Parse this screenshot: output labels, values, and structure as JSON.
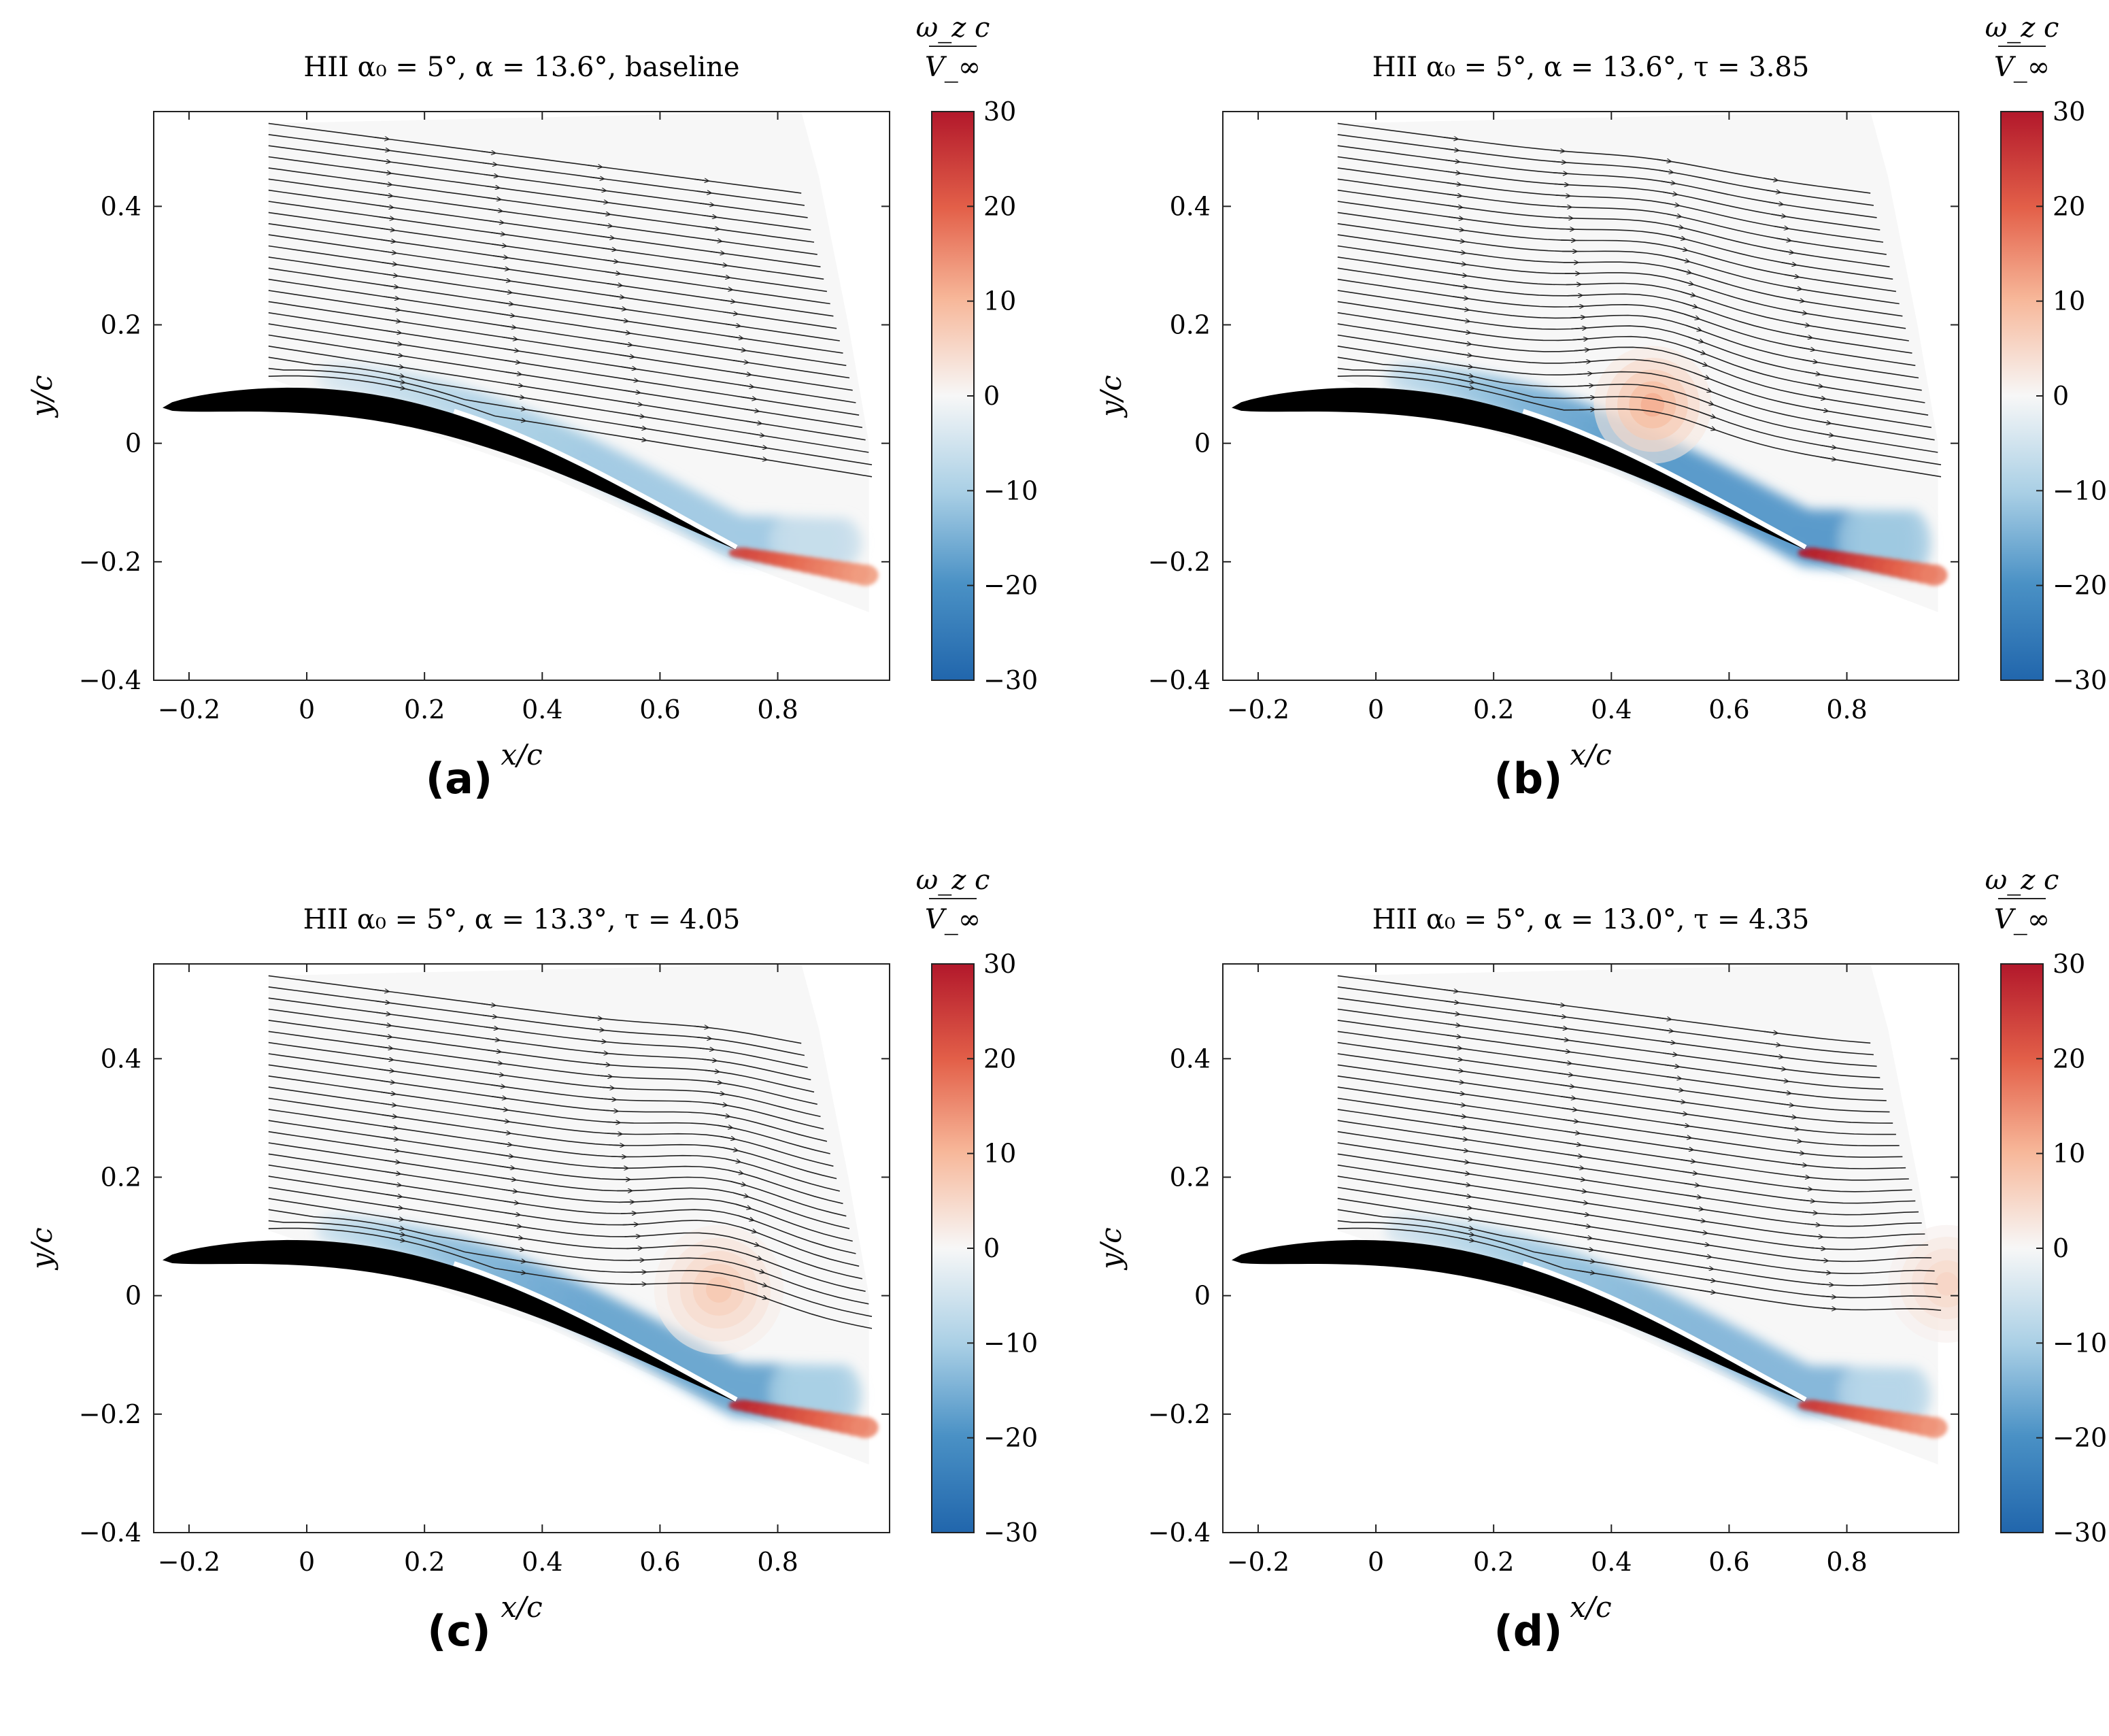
{
  "figure_title": "",
  "chart_data": [
    {
      "type": "heatmap",
      "panel": "(a)",
      "title": "HII α₀ = 5°, α = 13.6°, baseline",
      "xlabel": "x/c",
      "ylabel": "y/c",
      "xlim": [
        -0.26,
        0.99
      ],
      "ylim": [
        -0.4,
        0.56
      ],
      "xticks": [
        -0.2,
        0,
        0.2,
        0.4,
        0.6,
        0.8
      ],
      "yticks": [
        -0.4,
        -0.2,
        0,
        0.2,
        0.4
      ],
      "xtick_labels": [
        "−0.2",
        "0",
        "0.2",
        "0.4",
        "0.6",
        "0.8"
      ],
      "ytick_labels": [
        "−0.4",
        "−0.2",
        "0",
        "0.2",
        "0.4"
      ],
      "colorbar": {
        "label": "ω_z c / V_∞",
        "range": [
          -30,
          30
        ],
        "ticks": [
          30,
          20,
          10,
          0,
          -10,
          -20,
          -30
        ],
        "tick_labels": [
          "30",
          "20",
          "10",
          "0",
          "−10",
          "−20",
          "−30"
        ]
      },
      "vortex_blobs": [],
      "shear_intensity": 0.55,
      "wake_intensity": 0.8,
      "streamlines": "attached flow over suction side"
    },
    {
      "type": "heatmap",
      "panel": "(b)",
      "title": "HII α₀ = 5°, α = 13.6°, τ = 3.85",
      "xlabel": "x/c",
      "ylabel": "y/c",
      "xlim": [
        -0.26,
        0.99
      ],
      "ylim": [
        -0.4,
        0.56
      ],
      "xticks": [
        -0.2,
        0,
        0.2,
        0.4,
        0.6,
        0.8
      ],
      "yticks": [
        -0.4,
        -0.2,
        0,
        0.2,
        0.4
      ],
      "xtick_labels": [
        "−0.2",
        "0",
        "0.2",
        "0.4",
        "0.6",
        "0.8"
      ],
      "ytick_labels": [
        "−0.4",
        "−0.2",
        "0",
        "0.2",
        "0.4"
      ],
      "colorbar": {
        "label": "ω_z c / V_∞",
        "range": [
          -30,
          30
        ],
        "ticks": [
          30,
          20,
          10,
          0,
          -10,
          -20,
          -30
        ],
        "tick_labels": [
          "30",
          "20",
          "10",
          "0",
          "−10",
          "−20",
          "−30"
        ]
      },
      "vortex_blobs": [
        {
          "x": 0.47,
          "y": 0.065,
          "r": 0.1,
          "value": 12
        }
      ],
      "shear_intensity": 0.95,
      "wake_intensity": 1.0,
      "streamlines": "bulge above positive vortex near x/c = 0.47"
    },
    {
      "type": "heatmap",
      "panel": "(c)",
      "title": "HII α₀ = 5°, α = 13.3°, τ = 4.05",
      "xlabel": "x/c",
      "ylabel": "y/c",
      "xlim": [
        -0.26,
        0.99
      ],
      "ylim": [
        -0.4,
        0.56
      ],
      "xticks": [
        -0.2,
        0,
        0.2,
        0.4,
        0.6,
        0.8
      ],
      "yticks": [
        -0.4,
        -0.2,
        0,
        0.2,
        0.4
      ],
      "xtick_labels": [
        "−0.2",
        "0",
        "0.2",
        "0.4",
        "0.6",
        "0.8"
      ],
      "ytick_labels": [
        "−0.4",
        "−0.2",
        "0",
        "0.2",
        "0.4"
      ],
      "colorbar": {
        "label": "ω_z c / V_∞",
        "range": [
          -30,
          30
        ],
        "ticks": [
          30,
          20,
          10,
          0,
          -10,
          -20,
          -30
        ],
        "tick_labels": [
          "30",
          "20",
          "10",
          "0",
          "−10",
          "−20",
          "−30"
        ]
      },
      "vortex_blobs": [
        {
          "x": 0.7,
          "y": 0.01,
          "r": 0.11,
          "value": 8
        }
      ],
      "shear_intensity": 0.85,
      "wake_intensity": 0.95,
      "streamlines": "bulge above positive vortex near x/c = 0.70"
    },
    {
      "type": "heatmap",
      "panel": "(d)",
      "title": "HII α₀ = 5°, α = 13.0°, τ = 4.35",
      "xlabel": "x/c",
      "ylabel": "y/c",
      "xlim": [
        -0.26,
        0.99
      ],
      "ylim": [
        -0.4,
        0.56
      ],
      "xticks": [
        -0.2,
        0,
        0.2,
        0.4,
        0.6,
        0.8
      ],
      "yticks": [
        -0.4,
        -0.2,
        0,
        0.2,
        0.4
      ],
      "xtick_labels": [
        "−0.2",
        "0",
        "0.2",
        "0.4",
        "0.6",
        "0.8"
      ],
      "ytick_labels": [
        "−0.4",
        "−0.2",
        "0",
        "0.2",
        "0.4"
      ],
      "colorbar": {
        "label": "ω_z c / V_∞",
        "range": [
          -30,
          30
        ],
        "ticks": [
          30,
          20,
          10,
          0,
          -10,
          -20,
          -30
        ],
        "tick_labels": [
          "30",
          "20",
          "10",
          "0",
          "−10",
          "−20",
          "−30"
        ]
      },
      "vortex_blobs": [
        {
          "x": 0.97,
          "y": 0.02,
          "r": 0.1,
          "value": 6
        }
      ],
      "shear_intensity": 0.7,
      "wake_intensity": 0.85,
      "streamlines": "attached flow, vortex convected to right edge"
    }
  ]
}
